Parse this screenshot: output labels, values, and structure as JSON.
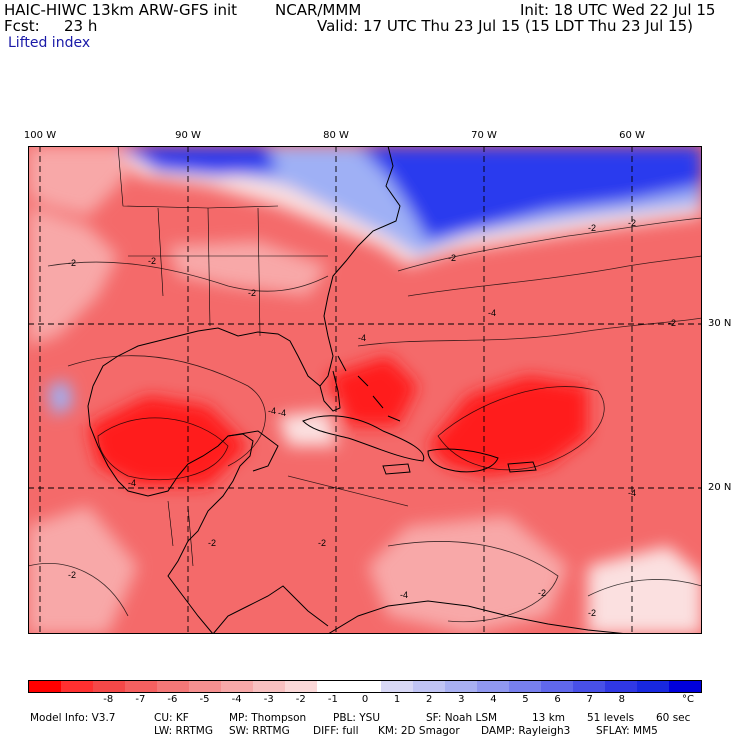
{
  "header": {
    "model_title": "HAIC-HIWC 13km ARW-GFS init",
    "org": "NCAR/MMM",
    "init": "Init: 18 UTC Wed 22 Jul 15",
    "fcst_label": "Fcst:",
    "fcst_value": "23 h",
    "valid": "Valid: 17 UTC Thu 23 Jul 15 (15 LDT Thu 23 Jul 15)",
    "field": "Lifted index"
  },
  "map": {
    "lon_labels": [
      "100 W",
      "90 W",
      "80 W",
      "70 W",
      "60 W"
    ],
    "lat_labels": [
      "30 N",
      "20 N"
    ],
    "contour_labels": [
      "-2",
      "-4",
      "-2",
      "-4",
      "-2",
      "-4",
      "-2",
      "-4",
      "-4",
      "-2",
      "-4",
      "-2",
      "-2",
      "-2",
      "-4",
      "-2",
      "-2",
      "-2",
      "-2"
    ],
    "colors": {
      "strong_unstable": "#ff1a1a",
      "unstable": "#f46a6a",
      "weak_unstable": "#f8a8a8",
      "neutral": "#fbe0e0",
      "stable": "#2a3aee",
      "weak_stable": "#9fb0f5",
      "land_border": "#000000",
      "grid": "#000000"
    }
  },
  "colorbar": {
    "colors": [
      "#ff0000",
      "#ff3030",
      "#f54848",
      "#f56060",
      "#f47878",
      "#f69090",
      "#f7a8a8",
      "#f8c0c0",
      "#fbd8d8",
      "#ffffff",
      "#ffffff",
      "#d8d8f6",
      "#c0c4f4",
      "#a8b0f2",
      "#9098f0",
      "#7880ee",
      "#6068ec",
      "#4850e8",
      "#3038e4",
      "#1828e0",
      "#0000dd"
    ],
    "ticks": [
      "-8",
      "-7",
      "-6",
      "-5",
      "-4",
      "-3",
      "-2",
      "-1",
      "0",
      "1",
      "2",
      "3",
      "4",
      "5",
      "6",
      "7",
      "8"
    ],
    "unit": "°C"
  },
  "footer": {
    "line1": [
      "Model Info: V3.7",
      "CU: KF",
      "MP: Thompson",
      "PBL: YSU",
      "SF: Noah LSM",
      "13 km",
      "51 levels",
      "60 sec"
    ],
    "line2": [
      "LW: RRTMG",
      "SW: RRTMG",
      "DIFF: full",
      "KM: 2D Smagor",
      "DAMP: Rayleigh3",
      "SFLAY: MM5"
    ]
  }
}
